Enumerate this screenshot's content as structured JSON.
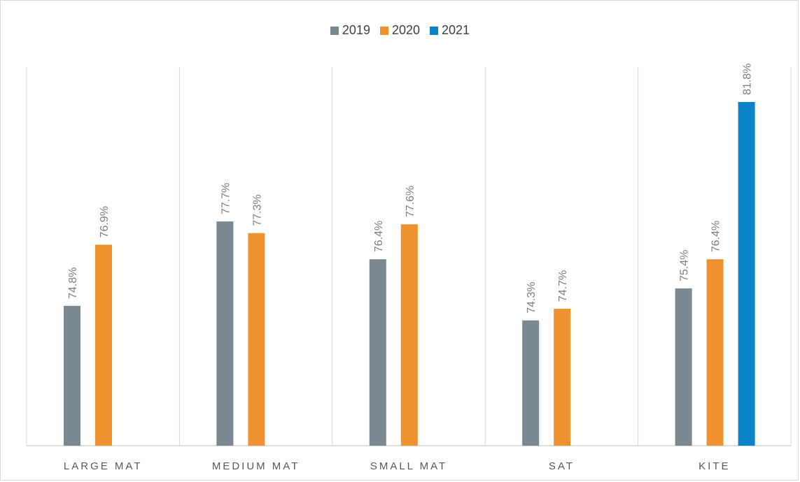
{
  "chart_data": {
    "type": "bar",
    "title": "",
    "xlabel": "",
    "ylabel": "",
    "ylim": [
      70,
      83
    ],
    "grid": "vertical category separators",
    "legend_position": "top-center",
    "categories": [
      "LARGE MAT",
      "MEDIUM MAT",
      "SMALL MAT",
      "SAT",
      "KITE"
    ],
    "series": [
      {
        "name": "2019",
        "color": "#7a8891",
        "values": [
          74.8,
          77.7,
          76.4,
          74.3,
          75.4
        ],
        "labels": [
          "74.8%",
          "77.7%",
          "76.4%",
          "74.3%",
          "75.4%"
        ]
      },
      {
        "name": "2020",
        "color": "#f0912f",
        "values": [
          76.9,
          77.3,
          77.6,
          74.7,
          76.4
        ],
        "labels": [
          "76.9%",
          "77.3%",
          "77.6%",
          "74.7%",
          "76.4%"
        ]
      },
      {
        "name": "2021",
        "color": "#0a84c8",
        "values": [
          null,
          null,
          null,
          null,
          81.8
        ],
        "labels": [
          "",
          "",
          "",
          "",
          "81.8%"
        ]
      }
    ]
  }
}
